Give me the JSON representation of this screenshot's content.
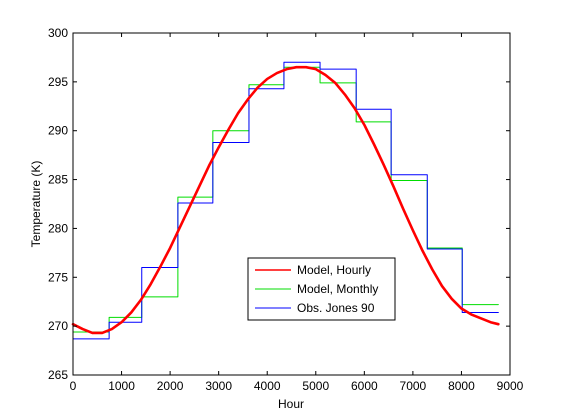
{
  "chart_data": {
    "type": "line",
    "title": "",
    "xlabel": "Hour",
    "ylabel": "Temperature (K)",
    "xlim": [
      0,
      9000
    ],
    "ylim": [
      265,
      300
    ],
    "xticks": [
      0,
      1000,
      2000,
      3000,
      4000,
      5000,
      6000,
      7000,
      8000,
      9000
    ],
    "yticks": [
      265,
      270,
      275,
      280,
      285,
      290,
      295,
      300
    ],
    "grid": false,
    "legend_position": "lower-center",
    "series": [
      {
        "name": "Model, Hourly",
        "color": "#ff0000",
        "style": "line",
        "x": [
          0,
          200,
          400,
          600,
          800,
          1000,
          1200,
          1400,
          1600,
          1800,
          2000,
          2200,
          2400,
          2600,
          2800,
          3000,
          3200,
          3400,
          3600,
          3800,
          4000,
          4200,
          4400,
          4600,
          4800,
          5000,
          5200,
          5400,
          5600,
          5800,
          6000,
          6200,
          6400,
          6600,
          6800,
          7000,
          7200,
          7400,
          7600,
          7800,
          8000,
          8200,
          8400,
          8600,
          8760
        ],
        "y": [
          270.2,
          269.7,
          269.3,
          269.3,
          269.7,
          270.4,
          271.4,
          272.7,
          274.3,
          276.1,
          278.0,
          280.1,
          282.2,
          284.3,
          286.4,
          288.3,
          290.1,
          291.8,
          293.2,
          294.4,
          295.3,
          295.9,
          296.3,
          296.5,
          296.5,
          296.3,
          295.7,
          294.9,
          293.7,
          292.3,
          290.6,
          288.6,
          286.5,
          284.3,
          282.0,
          279.8,
          277.7,
          275.8,
          274.1,
          272.8,
          271.8,
          271.2,
          270.8,
          270.4,
          270.2
        ]
      },
      {
        "name": "Model, Monthly",
        "color": "#00dd00",
        "style": "step",
        "edges": [
          0,
          744,
          1416,
          2160,
          2880,
          3624,
          4344,
          5088,
          5832,
          6552,
          7296,
          8016,
          8760
        ],
        "values": [
          269.4,
          270.9,
          273.0,
          283.2,
          290.0,
          294.7,
          296.5,
          294.9,
          290.9,
          284.9,
          278.0,
          272.2
        ]
      },
      {
        "name": "Obs. Jones 90",
        "color": "#0000ff",
        "style": "step",
        "edges": [
          0,
          744,
          1416,
          2160,
          2880,
          3624,
          4344,
          5088,
          5832,
          6552,
          7296,
          8016,
          8760
        ],
        "values": [
          268.7,
          270.4,
          276.0,
          282.6,
          288.8,
          294.3,
          297.0,
          296.3,
          292.2,
          285.5,
          277.9,
          271.4
        ]
      }
    ]
  }
}
